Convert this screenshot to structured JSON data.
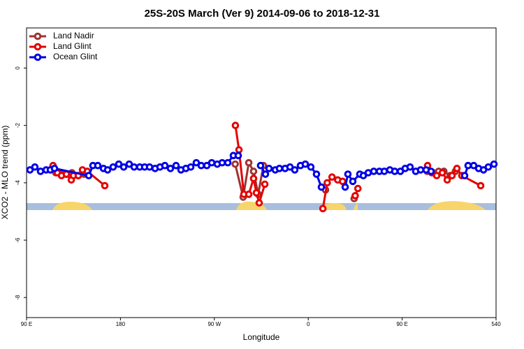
{
  "chart_data": {
    "type": "line",
    "title": "25S-20S March (Ver 9)   2014-09-06 to 2018-12-31",
    "x_label": "Longitude",
    "y_label": "XCO2 - MLO trend (ppm)",
    "xlim": [
      90,
      540
    ],
    "ylim": [
      -8.7,
      1.4
    ],
    "xticks": [
      {
        "value": 90,
        "label": "90 E"
      },
      180,
      {
        "value": 270,
        "label": "90 W"
      },
      {
        "value": 360,
        "label": "0"
      },
      {
        "value": 450,
        "label": "90 E"
      },
      540
    ],
    "yticks": [
      0,
      -2,
      -4,
      -6,
      -8
    ],
    "legend": "top-left",
    "series": [
      {
        "name": "Land Nadir",
        "color": "#a03232",
        "x": [
          118,
          123,
          128,
          133.5,
          139.5,
          145,
          null,
          290,
          297.6,
          303,
          307.6,
          312,
          317,
          null,
          376.6,
          null,
          404,
          null,
          474,
          480,
          485,
          490,
          496,
          501
        ],
        "values": [
          -3.65,
          -3.7,
          -3.7,
          -3.65,
          -3.75,
          -3.7,
          null,
          -3.35,
          -4.5,
          -3.3,
          -3.6,
          -4.4,
          -3.4,
          null,
          -4.25,
          null,
          -4.55,
          null,
          -3.6,
          -3.65,
          -3.6,
          -3.6,
          -3.75,
          -3.6
        ]
      },
      {
        "name": "Land Glint",
        "color": "#e60000",
        "x": [
          115.4,
          119.5,
          123.5,
          128.2,
          132.9,
          134.9,
          139.6,
          143.6,
          148.3,
          165,
          null,
          290.2,
          293.6,
          298.3,
          303,
          307.6,
          310.3,
          313,
          318.4,
          null,
          374,
          378.2,
          382.8,
          388.2,
          392.9,
          null,
          405,
          407.6,
          null,
          474.4,
          478.4,
          483.1,
          488.5,
          493.2,
          497.8,
          502.5,
          507.2,
          525.3
        ],
        "values": [
          -3.4,
          -3.65,
          -3.75,
          -3.7,
          -3.9,
          -3.75,
          -3.75,
          -3.55,
          -3.6,
          -4.1,
          null,
          -2.0,
          -2.85,
          -4.4,
          -4.4,
          -3.85,
          -4.35,
          -4.7,
          -4.05,
          null,
          -4.9,
          -4.0,
          -3.8,
          -3.9,
          -3.95,
          null,
          -4.45,
          -4.2,
          null,
          -3.4,
          -3.65,
          -3.75,
          -3.65,
          -3.9,
          -3.75,
          -3.5,
          -3.75,
          -4.1
        ]
      },
      {
        "name": "Ocean Glint",
        "color": "#0000e6",
        "x": [
          93.3,
          98,
          103.4,
          108.8,
          112.8,
          116.8,
          149.6,
          153.6,
          158.3,
          163.7,
          167.7,
          173,
          178.4,
          183.1,
          188.4,
          193.1,
          198.5,
          203.2,
          207.9,
          213.2,
          217.9,
          222.6,
          227.9,
          233.3,
          238,
          242.7,
          247.4,
          252.7,
          257.4,
          262.8,
          267.5,
          272.8,
          277.5,
          282.9,
          288.2,
          292.9,
          null,
          314.3,
          319,
          322.4,
          328.4,
          332.4,
          337.8,
          342.5,
          347.1,
          352.5,
          357.2,
          362.5,
          367.9,
          372.6,
          null,
          395.4,
          398,
          402.7,
          409.4,
          412.8,
          417.5,
          422.8,
          428.2,
          432.9,
          438.2,
          442.9,
          448.3,
          452.9,
          457.6,
          463,
          467.7,
          473,
          477.7,
          null,
          509.9,
          513.2,
          518.6,
          523.3,
          528,
          532.6,
          538
        ],
        "values": [
          -3.55,
          -3.45,
          -3.6,
          -3.55,
          -3.55,
          -3.5,
          -3.75,
          -3.4,
          -3.4,
          -3.5,
          -3.55,
          -3.45,
          -3.35,
          -3.45,
          -3.35,
          -3.45,
          -3.45,
          -3.45,
          -3.45,
          -3.5,
          -3.45,
          -3.4,
          -3.5,
          -3.4,
          -3.55,
          -3.5,
          -3.45,
          -3.3,
          -3.4,
          -3.4,
          -3.3,
          -3.35,
          -3.3,
          -3.3,
          -3.05,
          -3.05,
          null,
          -3.4,
          -3.7,
          -3.5,
          -3.55,
          -3.5,
          -3.5,
          -3.45,
          -3.55,
          -3.4,
          -3.35,
          -3.45,
          -3.7,
          -4.15,
          null,
          -4.15,
          -3.7,
          -3.95,
          -3.7,
          -3.75,
          -3.65,
          -3.6,
          -3.6,
          -3.6,
          -3.55,
          -3.6,
          -3.6,
          -3.5,
          -3.45,
          -3.6,
          -3.55,
          -3.55,
          -3.6,
          null,
          -3.75,
          -3.4,
          -3.4,
          -3.5,
          -3.55,
          -3.45,
          -3.35
        ]
      }
    ]
  }
}
